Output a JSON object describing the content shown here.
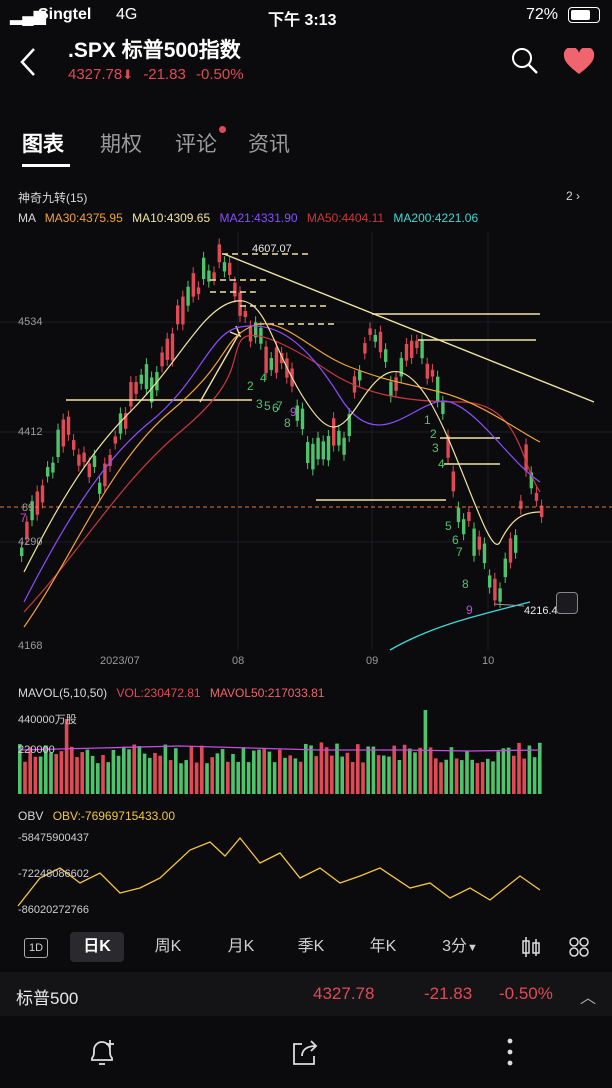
{
  "status_bar": {
    "carrier": "Singtel",
    "network": "4G",
    "time": "下午 3:13",
    "battery": "72%"
  },
  "header": {
    "title": ".SPX  标普500指数",
    "price": "4327.78",
    "change": "-21.83",
    "change_pct": "-0.50%"
  },
  "tabs": [
    {
      "label": "图表",
      "active": true
    },
    {
      "label": "期权"
    },
    {
      "label": "评论"
    },
    {
      "label": "资讯"
    }
  ],
  "indicator_title": "神奇九转(15)",
  "indicator_count": "2",
  "ma": {
    "label": "MA",
    "ma30": "MA30:4375.95",
    "ma10": "MA10:4309.65",
    "ma21": "MA21:4331.90",
    "ma50": "MA50:4404.11",
    "ma200": "MA200:4221.06"
  },
  "price_axis": [
    "4534",
    "4412",
    "4290",
    "4168"
  ],
  "price_axis_partial": "89",
  "high_label": "4607.07",
  "low_label": "4216.45",
  "date_axis": [
    "2023/07",
    "08",
    "09",
    "10"
  ],
  "td_counts": [
    {
      "t": "2",
      "c": "#4fc36b"
    },
    {
      "t": "3",
      "c": "#4fc36b"
    },
    {
      "t": "4",
      "c": "#4fc36b"
    },
    {
      "t": "5",
      "c": "#4fc36b"
    },
    {
      "t": "6",
      "c": "#4fc36b"
    },
    {
      "t": "7",
      "c": "#4fc36b"
    },
    {
      "t": "8",
      "c": "#4fc36b"
    },
    {
      "t": "9",
      "c": "#c44de0"
    },
    {
      "t": "1",
      "c": "#4fc36b"
    },
    {
      "t": "2",
      "c": "#4fc36b"
    },
    {
      "t": "3",
      "c": "#4fc36b"
    },
    {
      "t": "4",
      "c": "#4fc36b"
    },
    {
      "t": "5",
      "c": "#4fc36b"
    },
    {
      "t": "6",
      "c": "#4fc36b"
    },
    {
      "t": "7",
      "c": "#4fc36b"
    },
    {
      "t": "8",
      "c": "#4fc36b"
    },
    {
      "t": "9",
      "c": "#c44de0"
    },
    {
      "t": "7",
      "c": "#c44de0"
    }
  ],
  "mavol": {
    "label": "MAVOL(5,10,50)",
    "vol": "VOL:230472.81",
    "mavol50": "MAVOL50:217033.81",
    "max_label": "440000万股",
    "mid_label": "220000"
  },
  "obv": {
    "label": "OBV",
    "value": "OBV:-76969715433.00",
    "ticks": [
      "-58475900437",
      "-72248086602",
      "-86020272766"
    ]
  },
  "period_bar": {
    "items": [
      "1D",
      "日K",
      "周K",
      "月K",
      "季K",
      "年K",
      "3分"
    ],
    "active": "日K"
  },
  "quote_row": {
    "name": "标普500",
    "price": "4327.78",
    "change": "-21.83",
    "change_pct": "-0.50%"
  },
  "colors": {
    "up": "#4fc36b",
    "down": "#e04a55",
    "ma10": "#f2e3a1",
    "ma21": "#8b4dff",
    "ma30": "#f2a23a",
    "ma50": "#c9383e",
    "ma200": "#3fd6d6",
    "accent": "#f0646e"
  }
}
